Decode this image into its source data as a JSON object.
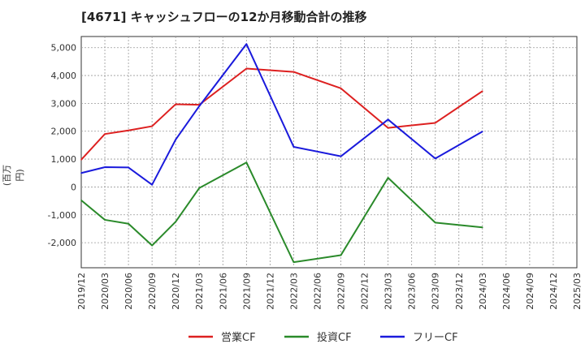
{
  "chart_data": {
    "type": "line",
    "title": "[4671]  キャッシュフローの12か月移動合計の推移",
    "ylabel": "(百万円)",
    "xlabel": "",
    "ylim": [
      -2900,
      5400
    ],
    "yticks": [
      -2000,
      -1000,
      0,
      1000,
      2000,
      3000,
      4000,
      5000
    ],
    "ytick_labels": [
      "-2,000",
      "-1,000",
      "0",
      "1,000",
      "2,000",
      "3,000",
      "4,000",
      "5,000"
    ],
    "categories": [
      "2019/12",
      "2020/03",
      "2020/06",
      "2020/09",
      "2020/12",
      "2021/03",
      "2021/06",
      "2021/09",
      "2021/12",
      "2022/03",
      "2022/06",
      "2022/09",
      "2022/12",
      "2023/03",
      "2023/06",
      "2023/09",
      "2023/12",
      "2024/03",
      "2024/06",
      "2024/09",
      "2024/12",
      "2025/03"
    ],
    "grid": true,
    "legend_position": "bottom",
    "series": [
      {
        "name": "営業CF",
        "color": "#dd2020",
        "values": [
          980,
          1900,
          2030,
          2180,
          2970,
          2950,
          null,
          4250,
          null,
          4130,
          null,
          3540,
          null,
          2120,
          null,
          2300,
          null,
          3440,
          null,
          null,
          null,
          null
        ]
      },
      {
        "name": "投資CF",
        "color": "#2a8a2a",
        "values": [
          -480,
          -1180,
          -1320,
          -2100,
          -1250,
          -40,
          null,
          880,
          null,
          -2700,
          null,
          -2450,
          null,
          330,
          null,
          -1280,
          null,
          -1450,
          null,
          null,
          null,
          null
        ]
      },
      {
        "name": "フリーCF",
        "color": "#1a1adc",
        "values": [
          500,
          710,
          700,
          80,
          1700,
          2900,
          null,
          5130,
          null,
          1440,
          null,
          1100,
          null,
          2420,
          null,
          1020,
          null,
          1990,
          null,
          null,
          null,
          null
        ]
      }
    ]
  }
}
